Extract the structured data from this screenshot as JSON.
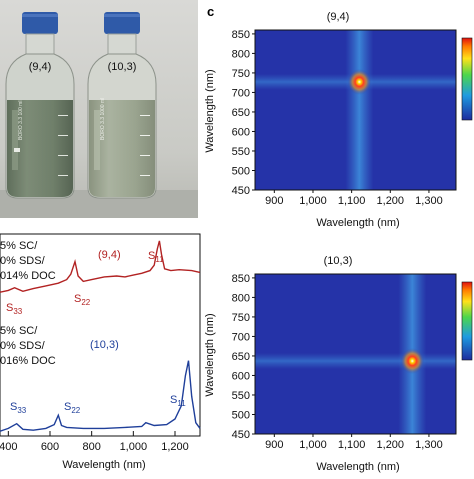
{
  "panel_label_c": "c",
  "photo": {
    "bottle_left_label": "(9,4)",
    "bottle_right_label": "(10,3)",
    "bottle_left_print": [
      "BORO",
      "3.3",
      "100 ml"
    ],
    "bottle_right_print": [
      "BORO",
      "3.3",
      "1000 ml"
    ],
    "colors": {
      "left_liquid": "#6f7f6a",
      "right_liquid": "#9aa48f",
      "cap": "#2f5aa8"
    }
  },
  "spectra": {
    "left_text_94": [
      "5% SC/",
      "0% SDS/",
      "014% DOC"
    ],
    "left_text_103": [
      "5% SC/",
      "0% SDS/",
      "016% DOC"
    ],
    "label_94": "(9,4)",
    "label_103": "(10,3)",
    "peak_labels_94": {
      "s11": "S11",
      "s22": "S22",
      "s33": "S33"
    },
    "peak_labels_103": {
      "s11": "S11",
      "s22": "S22",
      "s33": "S33"
    },
    "xlabel": "Wavelength (nm)",
    "xticks": [
      "400",
      "600",
      "800",
      "1,000",
      "1,200"
    ],
    "colors": {
      "c94": "#b22222",
      "c103": "#1f3f9a"
    }
  },
  "chart_data": [
    {
      "type": "line",
      "title": "",
      "xlabel": "Wavelength (nm)",
      "ylabel": "",
      "xlim": [
        360,
        1320
      ],
      "series": [
        {
          "name": "(9,4)",
          "x": [
            360,
            400,
            430,
            470,
            520,
            580,
            640,
            680,
            700,
            720,
            735,
            760,
            800,
            860,
            920,
            960,
            1000,
            1040,
            1080,
            1100,
            1115,
            1125,
            1135,
            1150,
            1180,
            1220,
            1280,
            1320
          ],
          "values": [
            0.42,
            0.44,
            0.47,
            0.43,
            0.46,
            0.49,
            0.52,
            0.56,
            0.62,
            0.76,
            0.6,
            0.54,
            0.56,
            0.59,
            0.6,
            0.59,
            0.61,
            0.63,
            0.66,
            0.72,
            0.9,
            0.99,
            0.84,
            0.68,
            0.66,
            0.67,
            0.66,
            0.64
          ]
        },
        {
          "name": "(10,3)",
          "x": [
            360,
            400,
            440,
            470,
            520,
            580,
            620,
            640,
            655,
            680,
            760,
            860,
            960,
            1040,
            1060,
            1100,
            1160,
            1200,
            1230,
            1250,
            1265,
            1280,
            1300,
            1320
          ],
          "values": [
            0.03,
            0.06,
            0.11,
            0.05,
            0.04,
            0.06,
            0.1,
            0.2,
            0.09,
            0.07,
            0.06,
            0.06,
            0.07,
            0.08,
            0.12,
            0.09,
            0.1,
            0.16,
            0.3,
            0.62,
            0.78,
            0.4,
            0.12,
            0.06
          ]
        }
      ]
    },
    {
      "type": "heatmap",
      "title": "(9,4)",
      "xlabel": "Wavelength (nm)",
      "ylabel": "Wavelength (nm)",
      "xticks": [
        "900",
        "1,000",
        "1,100",
        "1,200",
        "1,300"
      ],
      "yticks": [
        "450",
        "500",
        "550",
        "600",
        "650",
        "700",
        "750",
        "800",
        "850"
      ],
      "xlim": [
        850,
        1370
      ],
      "ylim": [
        450,
        860
      ],
      "peak": {
        "x": 1120,
        "y": 727
      },
      "colors": {
        "background": "#2533a8",
        "band": "#3b7fd0",
        "peak": "#ffffff"
      }
    },
    {
      "type": "heatmap",
      "title": "(10,3)",
      "xlabel": "Wavelength (nm)",
      "ylabel": "Wavelength (nm)",
      "xticks": [
        "900",
        "1,000",
        "1,100",
        "1,200",
        "1,300"
      ],
      "yticks": [
        "450",
        "500",
        "550",
        "600",
        "650",
        "700",
        "750",
        "800",
        "850"
      ],
      "xlim": [
        850,
        1370
      ],
      "ylim": [
        450,
        860
      ],
      "peak": {
        "x": 1257,
        "y": 637
      },
      "colors": {
        "background": "#2533a8",
        "band": "#3b7fd0",
        "peak": "#ffffff"
      }
    }
  ]
}
